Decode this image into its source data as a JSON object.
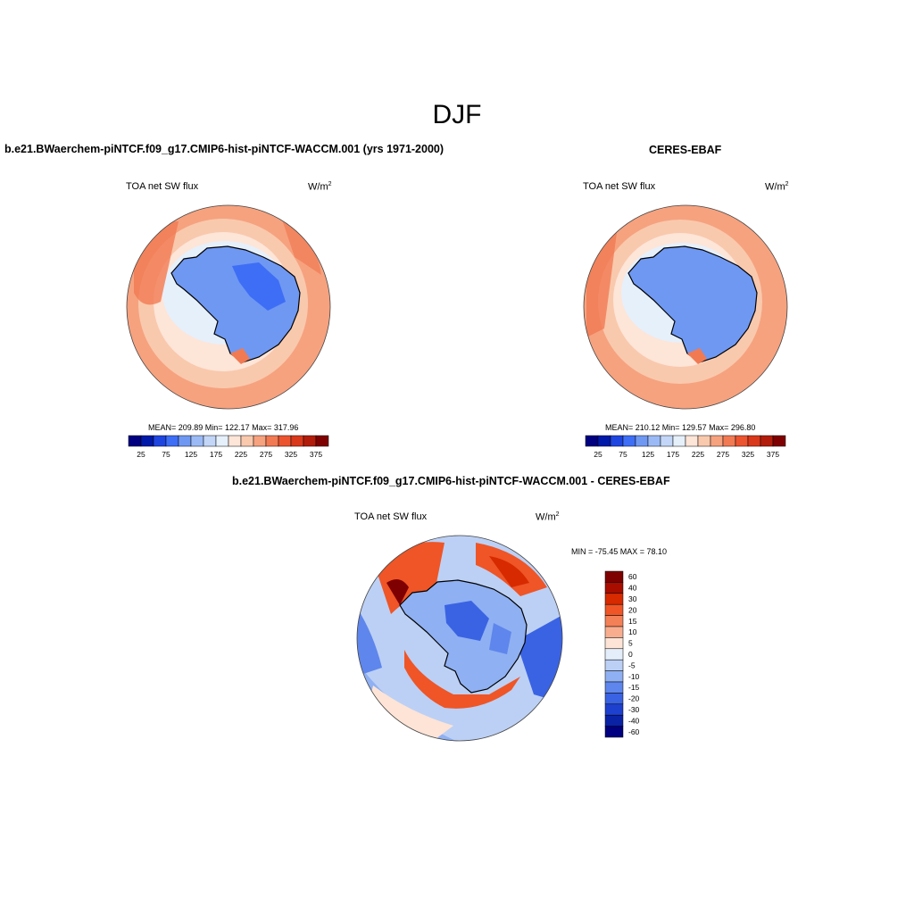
{
  "figure": {
    "season": "DJF"
  },
  "panels": {
    "model": {
      "title": "b.e21.BWaerchem-piNTCF.f09_g17.CMIP6-hist-piNTCF-WACCM.001 (yrs 1971-2000)",
      "variable": "TOA net SW flux",
      "units_base": "W/m",
      "units_exp": "2",
      "stats": "MEAN= 209.89  Min= 122.17  Max= 317.96"
    },
    "obs": {
      "title": "CERES-EBAF",
      "variable": "TOA net SW flux",
      "units_base": "W/m",
      "units_exp": "2",
      "stats": "MEAN= 210.12  Min= 129.57  Max= 296.80"
    },
    "diff": {
      "title": "b.e21.BWaerchem-piNTCF.f09_g17.CMIP6-hist-piNTCF-WACCM.001 - CERES-EBAF",
      "variable": "TOA net SW flux",
      "units_base": "W/m",
      "units_exp": "2",
      "stats": "MIN = -75.45 MAX =  78.10"
    }
  },
  "colorbars": {
    "absolute": {
      "orientation": "horizontal",
      "colors": [
        "#000080",
        "#0019a8",
        "#1f45e0",
        "#3e6ef5",
        "#6f98f2",
        "#9bbaf5",
        "#c3d6f7",
        "#e6f0fb",
        "#fde5d8",
        "#f9c9ad",
        "#f6a27f",
        "#f17a53",
        "#ec5430",
        "#d9381b",
        "#b21d0b",
        "#7f0000"
      ],
      "tick_labels": [
        "25",
        "75",
        "125",
        "175",
        "225",
        "275",
        "325",
        "375"
      ]
    },
    "difference": {
      "orientation": "vertical",
      "colors": [
        "#7f0000",
        "#a80d00",
        "#d72a00",
        "#ef5526",
        "#f48057",
        "#f9ad8f",
        "#fde4d6",
        "#e4eefb",
        "#bcd0f5",
        "#8fb0f2",
        "#5e86ec",
        "#3a63e3",
        "#1e40cf",
        "#0a22a6",
        "#000080"
      ],
      "tick_labels": [
        "60",
        "40",
        "30",
        "20",
        "15",
        "10",
        "5",
        "0",
        "-5",
        "-10",
        "-15",
        "-20",
        "-30",
        "-40",
        "-60"
      ]
    }
  }
}
